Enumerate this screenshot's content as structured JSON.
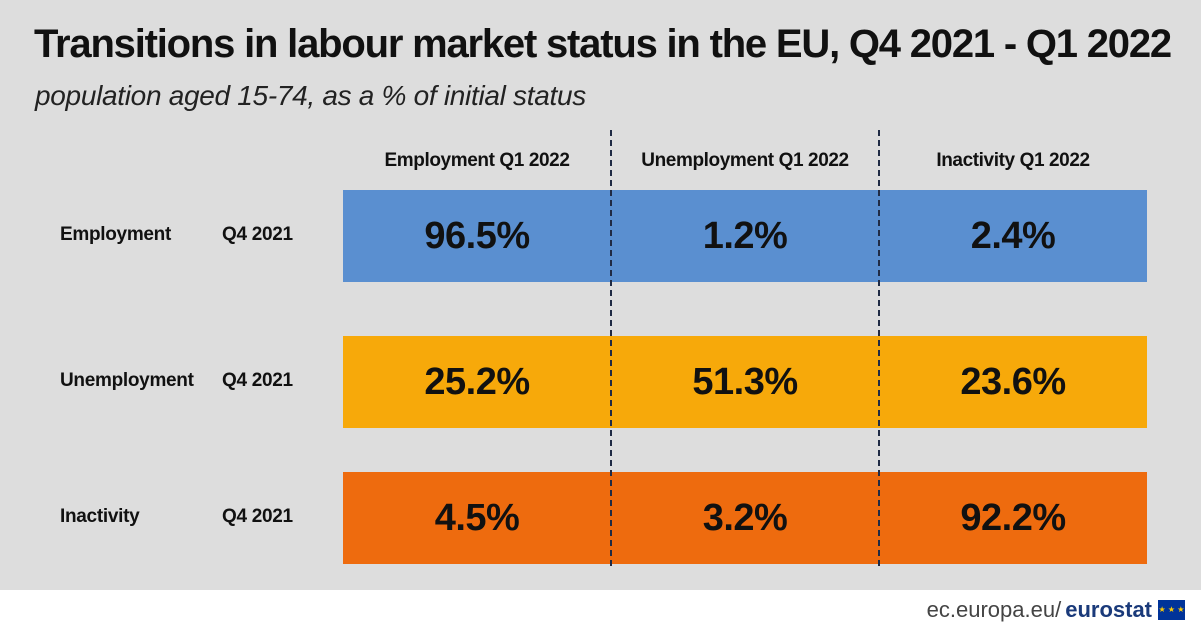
{
  "title": "Transitions in labour market status in the EU, Q4 2021 - Q1 2022",
  "subtitle": "population aged 15-74, as a % of initial status",
  "footer": {
    "domain": "ec.europa.eu/",
    "brand": "eurostat",
    "flag_icon": "eu-flag-icon"
  },
  "colors": {
    "background": "#dddddd",
    "employment": "#5a8fd0",
    "unemployment": "#f7a90a",
    "inactivity": "#ee6b0e",
    "divider": "#1f2a44"
  },
  "chart_data": {
    "type": "table",
    "title": "Transitions in labour market status in the EU, Q4 2021 - Q1 2022",
    "subtitle": "population aged 15-74, as a % of initial status",
    "columns": [
      {
        "label": "Employment  Q1 2022"
      },
      {
        "label": "Unemployment  Q1 2022"
      },
      {
        "label": "Inactivity  Q1 2022"
      }
    ],
    "rows": [
      {
        "label": "Employment",
        "period": "Q4 2021",
        "color": "#5a8fd0",
        "values": [
          96.5,
          1.2,
          2.4
        ],
        "display": [
          "96.5%",
          "1.2%",
          "2.4%"
        ]
      },
      {
        "label": "Unemployment",
        "period": "Q4 2021",
        "color": "#f7a90a",
        "values": [
          25.2,
          51.3,
          23.6
        ],
        "display": [
          "25.2%",
          "51.3%",
          "23.6%"
        ]
      },
      {
        "label": "Inactivity",
        "period": "Q4 2021",
        "color": "#ee6b0e",
        "values": [
          4.5,
          3.2,
          92.2
        ],
        "display": [
          "4.5%",
          "3.2%",
          "92.2%"
        ]
      }
    ],
    "unit": "%"
  }
}
